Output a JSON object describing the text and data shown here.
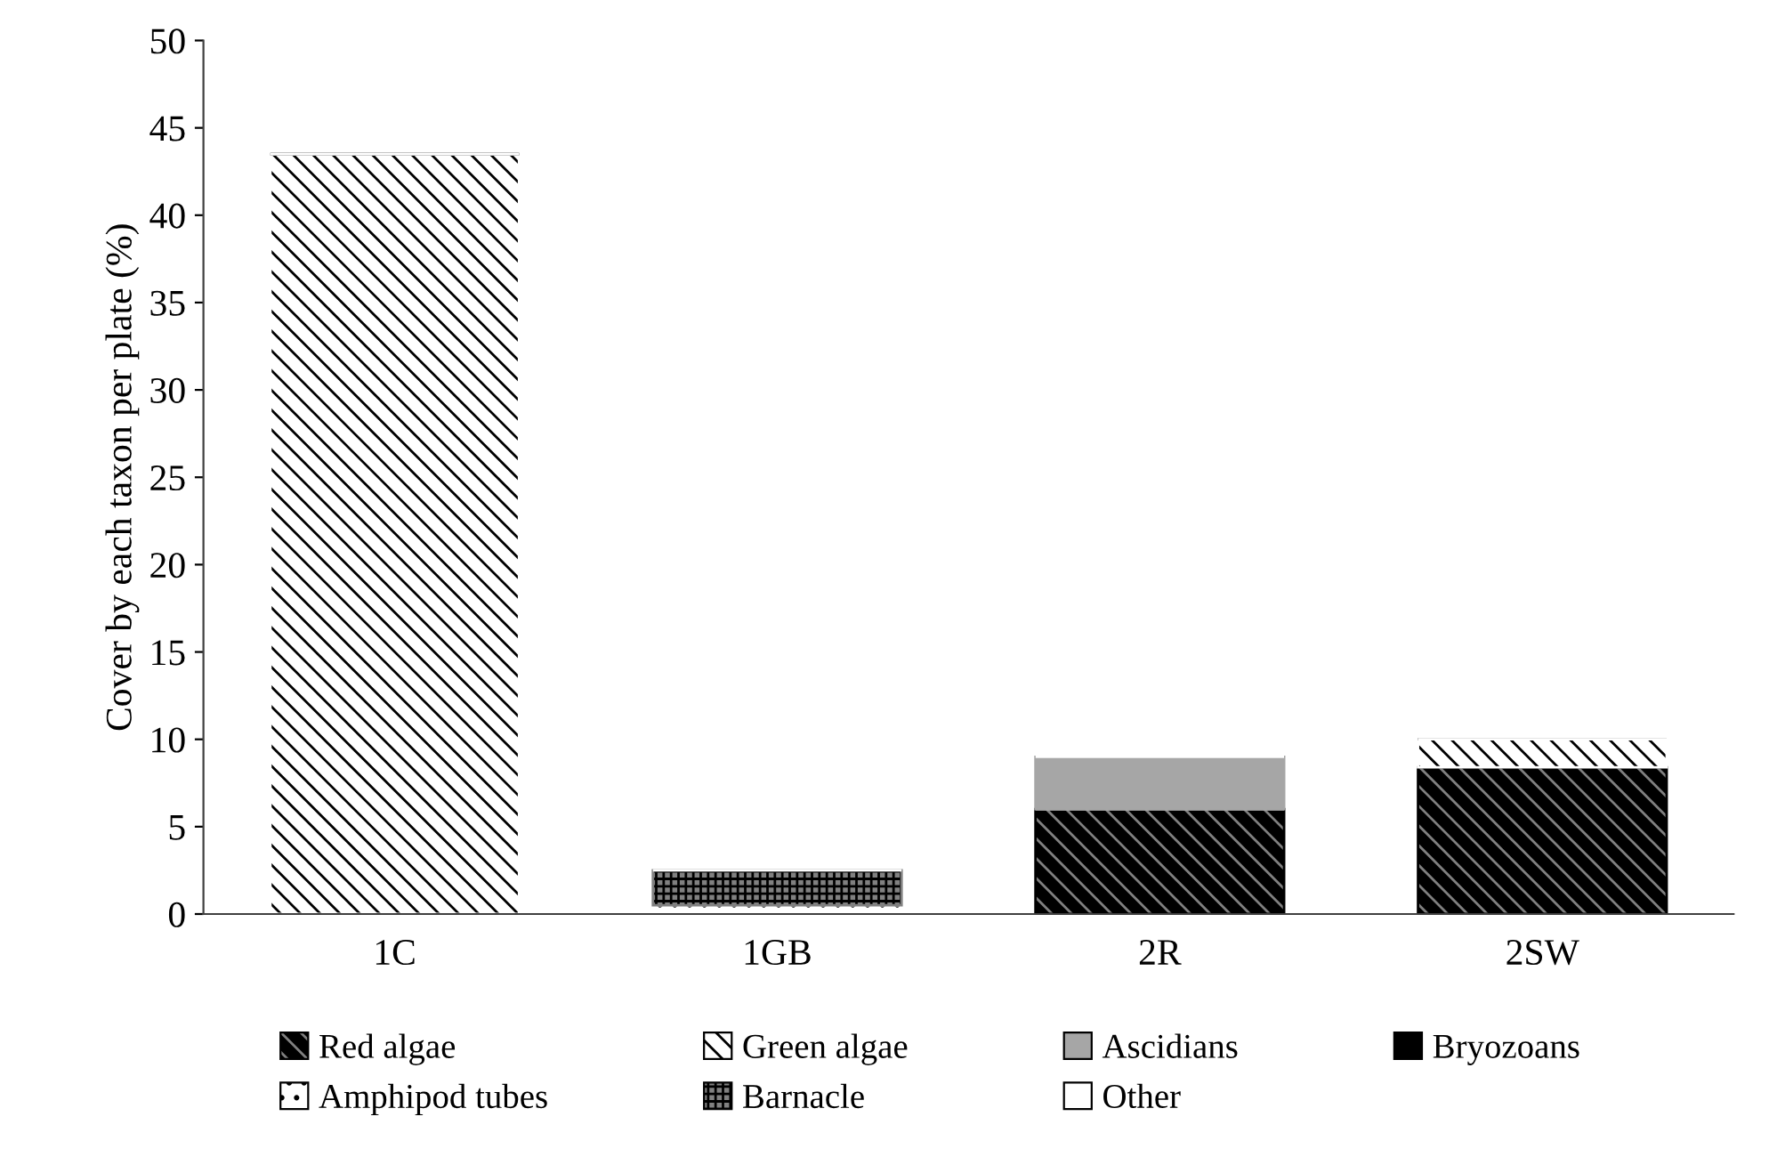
{
  "chart_data": {
    "type": "bar",
    "stacked": true,
    "ylabel": "Cover by each taxon per plate (%)",
    "categories": [
      "1C",
      "1GB",
      "2R",
      "2SW"
    ],
    "series": [
      {
        "name": "Red algae",
        "color": "#000000",
        "values": [
          0,
          0,
          6,
          8.4
        ]
      },
      {
        "name": "Green algae",
        "color": "#ffffff",
        "values": [
          43.5,
          0,
          0,
          1.6
        ]
      },
      {
        "name": "Ascidians",
        "color": "#a6a6a6",
        "values": [
          0,
          0,
          3,
          0
        ]
      },
      {
        "name": "Bryozoans",
        "color": "#000000",
        "values": [
          0,
          0,
          0,
          0
        ]
      },
      {
        "name": "Amphipod tubes",
        "color": "#ffffff",
        "values": [
          0,
          0.5,
          0,
          0
        ]
      },
      {
        "name": "Barnacle",
        "color": "#808080",
        "values": [
          0,
          2,
          0,
          0
        ]
      },
      {
        "name": "Other",
        "color": "#ffffff",
        "values": [
          0,
          0,
          0,
          0
        ]
      }
    ],
    "ylim": [
      0,
      50
    ],
    "yticks": [
      0,
      5,
      10,
      15,
      20,
      25,
      30,
      35,
      40,
      45,
      50
    ],
    "grid": false,
    "legend": "bottom"
  }
}
